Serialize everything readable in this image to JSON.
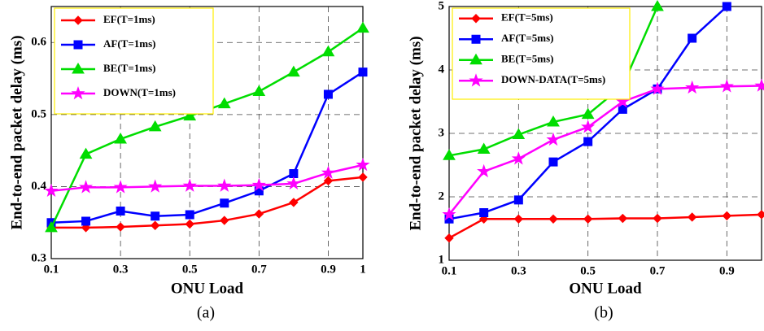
{
  "chart_data": [
    {
      "type": "line",
      "caption": "(a)",
      "x_label": "ONU Load",
      "y_label": "End-to-end packet delay (ms)",
      "x": [
        0.1,
        0.2,
        0.3,
        0.4,
        0.5,
        0.6,
        0.7,
        0.8,
        0.9,
        1.0
      ],
      "xlim": [
        0.1,
        1
      ],
      "xticks": [
        0.1,
        0.3,
        0.5,
        0.7,
        0.9,
        1
      ],
      "ylim": [
        0.3,
        0.65
      ],
      "yticks": [
        0.3,
        0.4,
        0.5,
        0.6
      ],
      "grid": true,
      "legend": "upper left",
      "series": [
        {
          "name": "EF(T=1ms)",
          "color": "#ff0000",
          "marker": "diamond",
          "values": [
            0.343,
            0.343,
            0.344,
            0.346,
            0.348,
            0.353,
            0.362,
            0.378,
            0.408,
            0.413
          ]
        },
        {
          "name": "AF(T=1ms)",
          "color": "#0000ff",
          "marker": "square",
          "values": [
            0.35,
            0.352,
            0.366,
            0.359,
            0.361,
            0.377,
            0.394,
            0.418,
            0.528,
            0.559
          ]
        },
        {
          "name": "BE(T=1ms)",
          "color": "#00dd00",
          "marker": "triangle",
          "values": [
            0.343,
            0.445,
            0.466,
            0.483,
            0.498,
            0.515,
            0.532,
            0.559,
            0.587,
            0.62
          ]
        },
        {
          "name": "DOWN(T=1ms)",
          "color": "#ff00ff",
          "marker": "star",
          "values": [
            0.394,
            0.399,
            0.399,
            0.4,
            0.401,
            0.401,
            0.402,
            0.404,
            0.419,
            0.43
          ]
        }
      ]
    },
    {
      "type": "line",
      "caption": "(b)",
      "x_label": "ONU Load",
      "y_label": "End-to-end packet delay (ms)",
      "x": [
        0.1,
        0.2,
        0.3,
        0.4,
        0.5,
        0.6,
        0.7,
        0.8,
        0.9,
        1.0
      ],
      "xlim": [
        0.1,
        1
      ],
      "xticks": [
        0.1,
        0.3,
        0.5,
        0.7,
        0.9
      ],
      "ylim": [
        1,
        5
      ],
      "yticks": [
        1,
        2,
        3,
        4,
        5
      ],
      "grid": true,
      "legend": "upper left",
      "series": [
        {
          "name": "EF(T=5ms)",
          "color": "#ff0000",
          "marker": "diamond",
          "values": [
            1.35,
            1.65,
            1.65,
            1.65,
            1.65,
            1.66,
            1.66,
            1.68,
            1.7,
            1.72
          ]
        },
        {
          "name": "AF(T=5ms)",
          "color": "#0000ff",
          "marker": "square",
          "values": [
            1.65,
            1.75,
            1.95,
            2.55,
            2.87,
            3.38,
            3.7,
            4.5,
            5.0,
            null
          ]
        },
        {
          "name": "BE(T=5ms)",
          "color": "#00dd00",
          "marker": "triangle",
          "values": [
            2.65,
            2.75,
            2.98,
            3.18,
            3.3,
            3.75,
            5.0,
            null,
            null,
            null
          ]
        },
        {
          "name": "DOWN-DATA(T=5ms)",
          "color": "#ff00ff",
          "marker": "star",
          "values": [
            1.72,
            2.4,
            2.6,
            2.9,
            3.1,
            3.5,
            3.7,
            3.72,
            3.74,
            3.75
          ]
        }
      ]
    }
  ]
}
